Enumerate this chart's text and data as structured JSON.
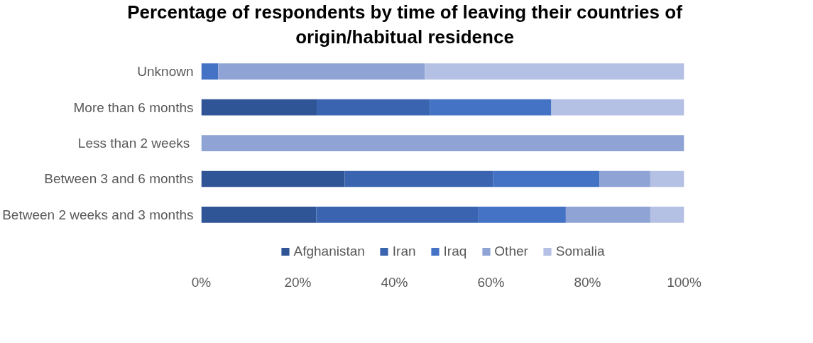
{
  "chart_data": {
    "type": "bar",
    "orientation": "horizontal",
    "stacked": true,
    "title": "Percentage of respondents by time of leaving their countries of origin/habitual residence",
    "categories": [
      "Unknown",
      "More than 6 months",
      "Less than 2  weeks",
      "Between 3 and 6 months",
      "Between 2 weeks and 3 months"
    ],
    "series": [
      {
        "name": "Afghanistan",
        "color": "#2f5597",
        "values": [
          0,
          23.9,
          0,
          29.7,
          23.8
        ]
      },
      {
        "name": "Iran",
        "color": "#3a64b0",
        "values": [
          0,
          23.4,
          0,
          30.7,
          33.6
        ]
      },
      {
        "name": "Iraq",
        "color": "#4472c4",
        "values": [
          3.5,
          25.2,
          0,
          22.1,
          18.1
        ]
      },
      {
        "name": "Other",
        "color": "#8fa4d5",
        "values": [
          42.8,
          0,
          100,
          10.5,
          17.5
        ]
      },
      {
        "name": "Somalia",
        "color": "#b4c0e4",
        "values": [
          53.7,
          27.5,
          0,
          7.0,
          7.0
        ]
      }
    ],
    "xlim": [
      0,
      100
    ],
    "xticks": [
      {
        "value": 0,
        "label": "0%"
      },
      {
        "value": 20,
        "label": "20%"
      },
      {
        "value": 40,
        "label": "40%"
      },
      {
        "value": 60,
        "label": "60%"
      },
      {
        "value": 80,
        "label": "80%"
      },
      {
        "value": 100,
        "label": "100%"
      }
    ],
    "grid": false,
    "legend": "bottom"
  }
}
